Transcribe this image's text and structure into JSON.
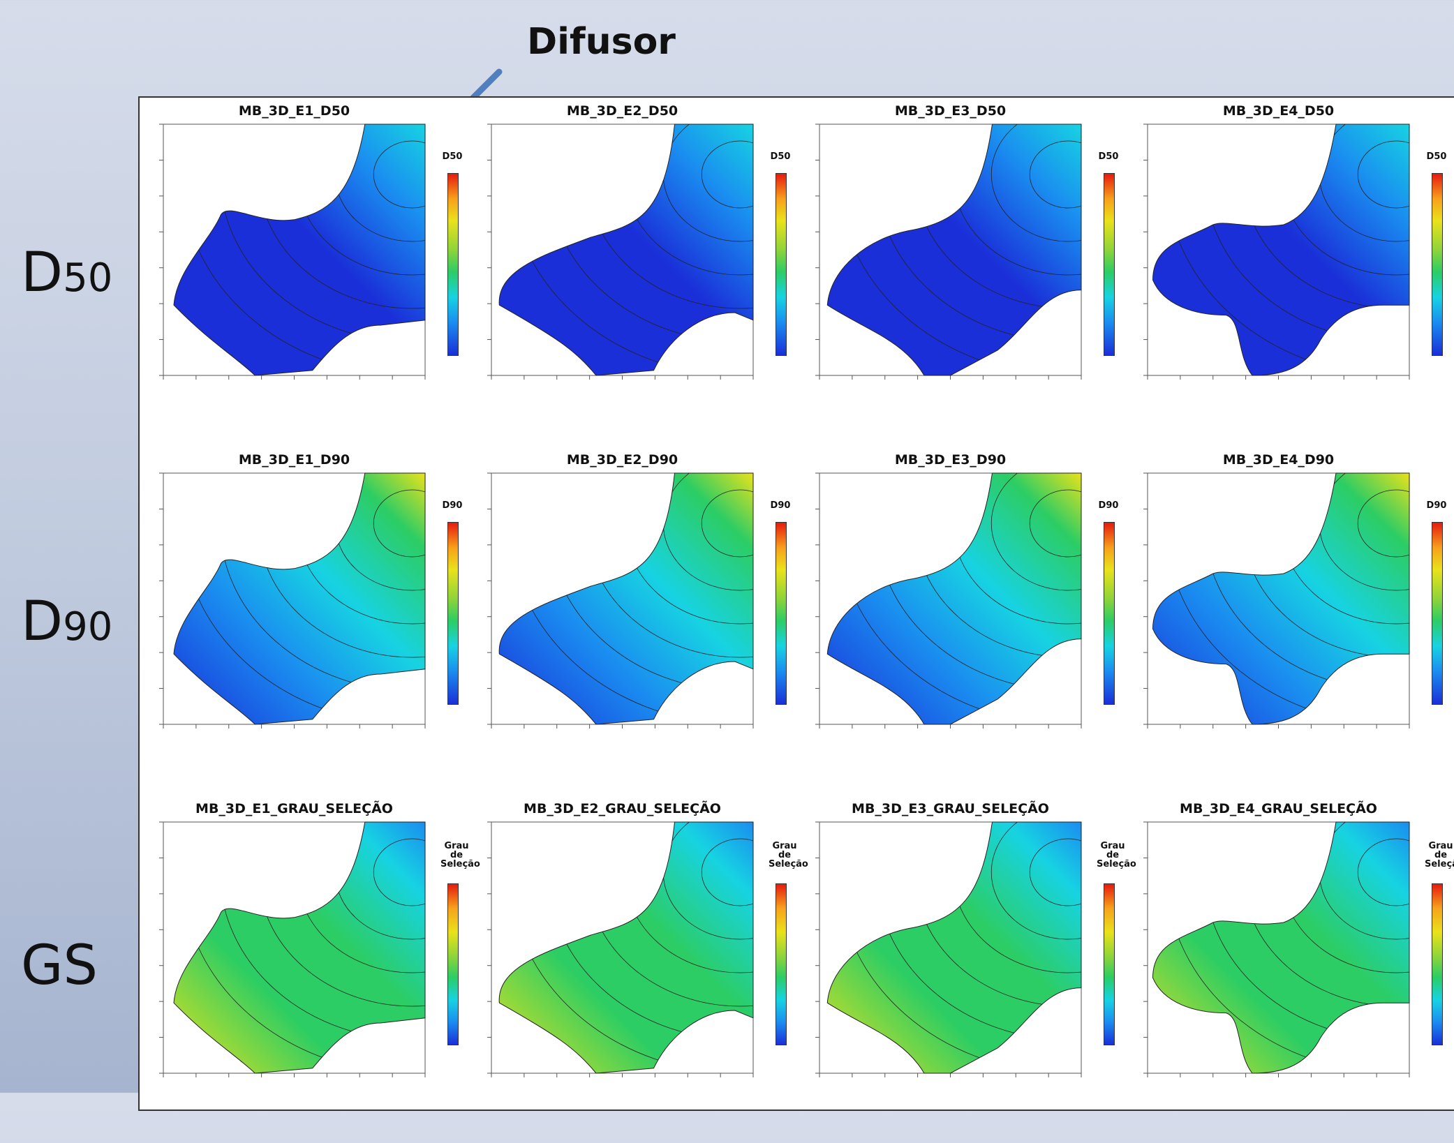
{
  "callout": "Difusor",
  "rows": [
    {
      "main": "D",
      "sub": "50"
    },
    {
      "main": "D",
      "sub": "90"
    },
    {
      "main": "GS",
      "sub": ""
    }
  ],
  "panels": [
    [
      "MB_3D_E1_D50",
      "MB_3D_E2_D50",
      "MB_3D_E3_D50",
      "MB_3D_E4_D50"
    ],
    [
      "MB_3D_E1_D90",
      "MB_3D_E2_D90",
      "MB_3D_E3_D90",
      "MB_3D_E4_D90"
    ],
    [
      "MB_3D_E1_GRAU_SELEÇÃO",
      "MB_3D_E2_GRAU_SELEÇÃO",
      "MB_3D_E3_GRAU_SELEÇÃO",
      "MB_3D_E4_GRAU_SELEÇÃO"
    ]
  ],
  "colorbar_titles": [
    "D50",
    "D90",
    "Grau de Seleção"
  ],
  "colors": {
    "low": "#1a2fd8",
    "mid_low": "#17d3e2",
    "mid": "#2ccd64",
    "mid_high": "#e9e21b",
    "high": "#e51a0f",
    "arrow": "#4f7fbf"
  }
}
